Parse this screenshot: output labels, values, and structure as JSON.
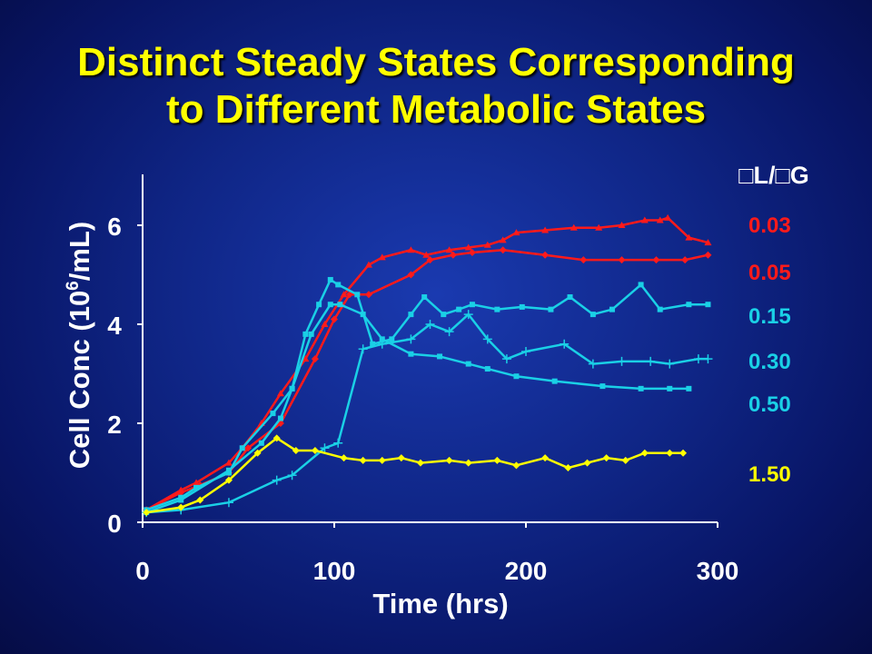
{
  "slide": {
    "title_line1": "Distinct Steady States Corresponding",
    "title_line2": "to Different Metabolic States",
    "background": "#0f2585",
    "title_color": "#ffff00"
  },
  "chart_data": {
    "type": "line",
    "xlabel": "Time (hrs)",
    "ylabel_main": "Cell Conc (10",
    "ylabel_sup": "6",
    "ylabel_tail": "/mL)",
    "legend_header": "□L/□G",
    "legend_placement": "right",
    "xlim": [
      0,
      300
    ],
    "ylim": [
      0,
      7
    ],
    "x_ticks": [
      "0",
      "100",
      "200",
      "300"
    ],
    "y_ticks": [
      "0",
      "2",
      "4",
      "6"
    ],
    "x_tick_values": [
      0,
      100,
      200,
      300
    ],
    "y_tick_values": [
      0,
      2,
      4,
      6
    ],
    "grid": false,
    "axis_color": "#ffffff",
    "series": [
      {
        "name": "0.03",
        "color": "#ff1a1a",
        "marker": "triangle",
        "points": [
          [
            2,
            0.25
          ],
          [
            20,
            0.65
          ],
          [
            28,
            0.8
          ],
          [
            45,
            1.2
          ],
          [
            52,
            1.5
          ],
          [
            62,
            2.0
          ],
          [
            72,
            2.6
          ],
          [
            85,
            3.3
          ],
          [
            95,
            4.0
          ],
          [
            105,
            4.6
          ],
          [
            118,
            5.2
          ],
          [
            125,
            5.35
          ],
          [
            140,
            5.5
          ],
          [
            148,
            5.4
          ],
          [
            160,
            5.5
          ],
          [
            170,
            5.55
          ],
          [
            180,
            5.6
          ],
          [
            188,
            5.7
          ],
          [
            195,
            5.85
          ],
          [
            210,
            5.9
          ],
          [
            225,
            5.95
          ],
          [
            238,
            5.95
          ],
          [
            250,
            6.0
          ],
          [
            262,
            6.1
          ],
          [
            270,
            6.1
          ],
          [
            274,
            6.15
          ],
          [
            285,
            5.75
          ],
          [
            295,
            5.65
          ]
        ]
      },
      {
        "name": "0.05",
        "color": "#ff1a1a",
        "marker": "diamond",
        "points": [
          [
            2,
            0.25
          ],
          [
            20,
            0.6
          ],
          [
            30,
            0.75
          ],
          [
            45,
            1.0
          ],
          [
            55,
            1.5
          ],
          [
            72,
            2.0
          ],
          [
            90,
            3.3
          ],
          [
            100,
            4.1
          ],
          [
            108,
            4.6
          ],
          [
            118,
            4.6
          ],
          [
            140,
            5.0
          ],
          [
            150,
            5.3
          ],
          [
            162,
            5.4
          ],
          [
            172,
            5.45
          ],
          [
            188,
            5.5
          ],
          [
            210,
            5.4
          ],
          [
            230,
            5.3
          ],
          [
            250,
            5.3
          ],
          [
            268,
            5.3
          ],
          [
            283,
            5.3
          ],
          [
            295,
            5.4
          ]
        ]
      },
      {
        "name": "0.15",
        "color": "#1ad0e6",
        "marker": "square",
        "points": [
          [
            2,
            0.25
          ],
          [
            20,
            0.5
          ],
          [
            28,
            0.7
          ],
          [
            45,
            1.0
          ],
          [
            52,
            1.5
          ],
          [
            68,
            2.2
          ],
          [
            78,
            2.7
          ],
          [
            85,
            3.8
          ],
          [
            92,
            4.4
          ],
          [
            98,
            4.9
          ],
          [
            102,
            4.8
          ],
          [
            112,
            4.6
          ],
          [
            120,
            3.6
          ],
          [
            130,
            3.7
          ],
          [
            140,
            4.2
          ],
          [
            147,
            4.55
          ],
          [
            157,
            4.2
          ],
          [
            165,
            4.3
          ],
          [
            172,
            4.4
          ],
          [
            185,
            4.3
          ],
          [
            198,
            4.35
          ],
          [
            213,
            4.3
          ],
          [
            223,
            4.55
          ],
          [
            235,
            4.2
          ],
          [
            245,
            4.3
          ],
          [
            260,
            4.8
          ],
          [
            270,
            4.3
          ],
          [
            285,
            4.4
          ],
          [
            295,
            4.4
          ]
        ]
      },
      {
        "name": "0.30",
        "color": "#1ad0e6",
        "marker": "plus",
        "points": [
          [
            2,
            0.2
          ],
          [
            20,
            0.25
          ],
          [
            45,
            0.4
          ],
          [
            70,
            0.85
          ],
          [
            78,
            0.95
          ],
          [
            95,
            1.5
          ],
          [
            102,
            1.6
          ],
          [
            115,
            3.5
          ],
          [
            125,
            3.6
          ],
          [
            140,
            3.7
          ],
          [
            150,
            4.0
          ],
          [
            160,
            3.85
          ],
          [
            170,
            4.2
          ],
          [
            180,
            3.7
          ],
          [
            190,
            3.3
          ],
          [
            200,
            3.45
          ],
          [
            220,
            3.6
          ],
          [
            235,
            3.2
          ],
          [
            250,
            3.25
          ],
          [
            265,
            3.25
          ],
          [
            275,
            3.2
          ],
          [
            290,
            3.3
          ],
          [
            295,
            3.3
          ]
        ]
      },
      {
        "name": "0.50",
        "color": "#1ad0e6",
        "marker": "square",
        "points": [
          [
            2,
            0.2
          ],
          [
            20,
            0.45
          ],
          [
            45,
            1.05
          ],
          [
            62,
            1.6
          ],
          [
            72,
            2.1
          ],
          [
            78,
            2.7
          ],
          [
            88,
            3.8
          ],
          [
            98,
            4.4
          ],
          [
            103,
            4.4
          ],
          [
            115,
            4.2
          ],
          [
            125,
            3.7
          ],
          [
            140,
            3.4
          ],
          [
            155,
            3.35
          ],
          [
            170,
            3.2
          ],
          [
            180,
            3.1
          ],
          [
            195,
            2.95
          ],
          [
            215,
            2.85
          ],
          [
            240,
            2.75
          ],
          [
            260,
            2.7
          ],
          [
            275,
            2.7
          ],
          [
            285,
            2.7
          ]
        ]
      },
      {
        "name": "1.50",
        "color": "#ffff00",
        "marker": "diamond",
        "points": [
          [
            2,
            0.2
          ],
          [
            20,
            0.3
          ],
          [
            30,
            0.45
          ],
          [
            45,
            0.85
          ],
          [
            60,
            1.4
          ],
          [
            70,
            1.7
          ],
          [
            80,
            1.45
          ],
          [
            90,
            1.45
          ],
          [
            105,
            1.3
          ],
          [
            115,
            1.25
          ],
          [
            125,
            1.25
          ],
          [
            135,
            1.3
          ],
          [
            145,
            1.2
          ],
          [
            160,
            1.25
          ],
          [
            170,
            1.2
          ],
          [
            185,
            1.25
          ],
          [
            195,
            1.15
          ],
          [
            210,
            1.3
          ],
          [
            222,
            1.1
          ],
          [
            232,
            1.2
          ],
          [
            242,
            1.3
          ],
          [
            252,
            1.25
          ],
          [
            262,
            1.4
          ],
          [
            275,
            1.4
          ],
          [
            282,
            1.4
          ]
        ]
      }
    ]
  }
}
